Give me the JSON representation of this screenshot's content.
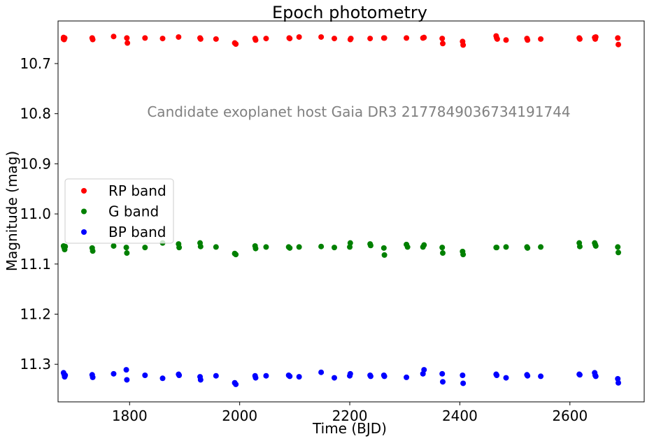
{
  "chart_data": {
    "type": "scatter",
    "title": "Epoch photometry",
    "xlabel": "Time (BJD)",
    "ylabel": "Magnitude (mag)",
    "annotation": "Candidate exoplanet host Gaia DR3 2177849036734191744",
    "xlim": [
      1670,
      2735
    ],
    "ylim": [
      11.375,
      10.615
    ],
    "y_inverted": true,
    "xticks": [
      1800,
      2000,
      2200,
      2400,
      2600
    ],
    "xtick_labels": [
      "1800",
      "2000",
      "2200",
      "2400",
      "2600"
    ],
    "yticks": [
      10.7,
      10.8,
      10.9,
      11.0,
      11.1,
      11.2,
      11.3
    ],
    "ytick_labels": [
      "10.7",
      "10.8",
      "10.9",
      "11.0",
      "11.1",
      "11.2",
      "11.3"
    ],
    "grid": false,
    "legend_position": "center-left",
    "series": [
      {
        "name": "RP band",
        "color": "#ff0000",
        "points": [
          [
            1680,
            10.648
          ],
          [
            1680,
            10.651
          ],
          [
            1681,
            10.652
          ],
          [
            1682,
            10.649
          ],
          [
            1732,
            10.649
          ],
          [
            1733,
            10.652
          ],
          [
            1771,
            10.646
          ],
          [
            1795,
            10.649
          ],
          [
            1796,
            10.659
          ],
          [
            1828,
            10.649
          ],
          [
            1860,
            10.65
          ],
          [
            1889,
            10.647
          ],
          [
            1928,
            10.649
          ],
          [
            1929,
            10.651
          ],
          [
            1957,
            10.651
          ],
          [
            1991,
            10.659
          ],
          [
            1993,
            10.661
          ],
          [
            2028,
            10.65
          ],
          [
            2029,
            10.653
          ],
          [
            2048,
            10.65
          ],
          [
            2090,
            10.649
          ],
          [
            2091,
            10.65
          ],
          [
            2108,
            10.647
          ],
          [
            2148,
            10.647
          ],
          [
            2172,
            10.65
          ],
          [
            2201,
            10.652
          ],
          [
            2202,
            10.65
          ],
          [
            2237,
            10.65
          ],
          [
            2262,
            10.649
          ],
          [
            2263,
            10.649
          ],
          [
            2303,
            10.649
          ],
          [
            2333,
            10.649
          ],
          [
            2335,
            10.648
          ],
          [
            2368,
            10.65
          ],
          [
            2369,
            10.66
          ],
          [
            2405,
            10.656
          ],
          [
            2406,
            10.663
          ],
          [
            2466,
            10.645
          ],
          [
            2467,
            10.649
          ],
          [
            2468,
            10.651
          ],
          [
            2484,
            10.653
          ],
          [
            2522,
            10.65
          ],
          [
            2523,
            10.653
          ],
          [
            2547,
            10.651
          ],
          [
            2617,
            10.649
          ],
          [
            2618,
            10.651
          ],
          [
            2645,
            10.648
          ],
          [
            2646,
            10.651
          ],
          [
            2647,
            10.647
          ],
          [
            2687,
            10.649
          ],
          [
            2688,
            10.662
          ]
        ]
      },
      {
        "name": "G band",
        "color": "#008000",
        "points": [
          [
            1680,
            11.064
          ],
          [
            1681,
            11.067
          ],
          [
            1682,
            11.071
          ],
          [
            1683,
            11.065
          ],
          [
            1732,
            11.068
          ],
          [
            1733,
            11.074
          ],
          [
            1771,
            11.064
          ],
          [
            1794,
            11.067
          ],
          [
            1795,
            11.078
          ],
          [
            1828,
            11.067
          ],
          [
            1860,
            11.058
          ],
          [
            1889,
            11.06
          ],
          [
            1890,
            11.067
          ],
          [
            1928,
            11.058
          ],
          [
            1929,
            11.065
          ],
          [
            1957,
            11.066
          ],
          [
            1991,
            11.079
          ],
          [
            1993,
            11.081
          ],
          [
            2028,
            11.064
          ],
          [
            2029,
            11.069
          ],
          [
            2048,
            11.066
          ],
          [
            2089,
            11.066
          ],
          [
            2091,
            11.068
          ],
          [
            2108,
            11.066
          ],
          [
            2148,
            11.065
          ],
          [
            2172,
            11.067
          ],
          [
            2200,
            11.066
          ],
          [
            2201,
            11.058
          ],
          [
            2237,
            11.06
          ],
          [
            2238,
            11.063
          ],
          [
            2262,
            11.068
          ],
          [
            2263,
            11.082
          ],
          [
            2303,
            11.061
          ],
          [
            2305,
            11.066
          ],
          [
            2333,
            11.066
          ],
          [
            2335,
            11.062
          ],
          [
            2368,
            11.067
          ],
          [
            2369,
            11.078
          ],
          [
            2405,
            11.075
          ],
          [
            2406,
            11.081
          ],
          [
            2466,
            11.067
          ],
          [
            2467,
            11.067
          ],
          [
            2484,
            11.066
          ],
          [
            2522,
            11.066
          ],
          [
            2523,
            11.068
          ],
          [
            2547,
            11.066
          ],
          [
            2617,
            11.058
          ],
          [
            2618,
            11.065
          ],
          [
            2645,
            11.058
          ],
          [
            2646,
            11.061
          ],
          [
            2647,
            11.064
          ],
          [
            2687,
            11.066
          ],
          [
            2688,
            11.077
          ]
        ]
      },
      {
        "name": "BP band",
        "color": "#0000ff",
        "points": [
          [
            1680,
            11.317
          ],
          [
            1681,
            11.32
          ],
          [
            1682,
            11.325
          ],
          [
            1683,
            11.322
          ],
          [
            1732,
            11.321
          ],
          [
            1733,
            11.326
          ],
          [
            1771,
            11.319
          ],
          [
            1794,
            11.311
          ],
          [
            1795,
            11.331
          ],
          [
            1828,
            11.322
          ],
          [
            1860,
            11.328
          ],
          [
            1889,
            11.32
          ],
          [
            1890,
            11.322
          ],
          [
            1928,
            11.325
          ],
          [
            1929,
            11.331
          ],
          [
            1957,
            11.323
          ],
          [
            1991,
            11.337
          ],
          [
            1993,
            11.34
          ],
          [
            2028,
            11.323
          ],
          [
            2029,
            11.327
          ],
          [
            2048,
            11.323
          ],
          [
            2089,
            11.322
          ],
          [
            2091,
            11.324
          ],
          [
            2108,
            11.325
          ],
          [
            2148,
            11.316
          ],
          [
            2172,
            11.327
          ],
          [
            2200,
            11.323
          ],
          [
            2201,
            11.319
          ],
          [
            2237,
            11.322
          ],
          [
            2238,
            11.324
          ],
          [
            2262,
            11.322
          ],
          [
            2263,
            11.324
          ],
          [
            2303,
            11.326
          ],
          [
            2333,
            11.319
          ],
          [
            2335,
            11.311
          ],
          [
            2368,
            11.319
          ],
          [
            2369,
            11.335
          ],
          [
            2405,
            11.322
          ],
          [
            2406,
            11.338
          ],
          [
            2466,
            11.32
          ],
          [
            2467,
            11.322
          ],
          [
            2484,
            11.327
          ],
          [
            2522,
            11.321
          ],
          [
            2523,
            11.323
          ],
          [
            2547,
            11.324
          ],
          [
            2617,
            11.32
          ],
          [
            2618,
            11.321
          ],
          [
            2645,
            11.317
          ],
          [
            2646,
            11.322
          ],
          [
            2647,
            11.324
          ],
          [
            2687,
            11.329
          ],
          [
            2688,
            11.337
          ]
        ]
      }
    ]
  }
}
